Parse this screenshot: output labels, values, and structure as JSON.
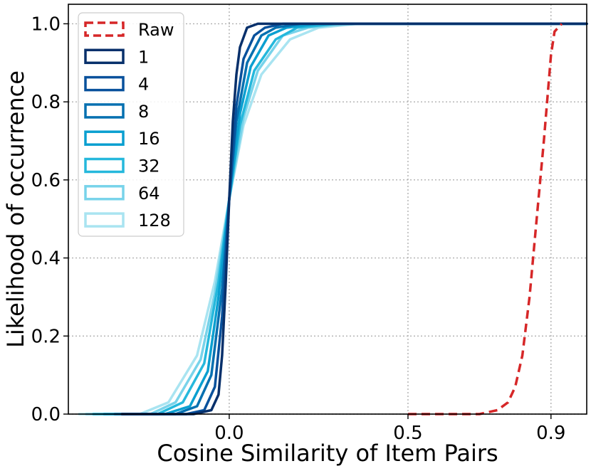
{
  "chart_data": {
    "type": "line",
    "xlabel": "Cosine Similarity of Item Pairs",
    "ylabel": "Likelihood of occurrence",
    "xlim": [
      -0.45,
      1.0
    ],
    "ylim": [
      0.0,
      1.05
    ],
    "x_ticks": [
      0.0,
      0.5,
      0.9
    ],
    "x_tick_labels": [
      "0.0",
      "0.5",
      "0.9"
    ],
    "y_ticks": [
      0.0,
      0.2,
      0.4,
      0.6,
      0.8,
      1.0
    ],
    "y_tick_labels": [
      "0.0",
      "0.2",
      "0.4",
      "0.6",
      "0.8",
      "1.0"
    ],
    "grid": true,
    "legend_position": "top-left",
    "series": [
      {
        "name": "Raw",
        "color": "#d62728",
        "dashed": true,
        "x": [
          0.5,
          0.7,
          0.75,
          0.78,
          0.8,
          0.82,
          0.84,
          0.86,
          0.88,
          0.9,
          0.91,
          0.93
        ],
        "y": [
          0.0,
          0.0,
          0.01,
          0.03,
          0.07,
          0.15,
          0.3,
          0.5,
          0.7,
          0.92,
          0.98,
          1.0
        ]
      },
      {
        "name": "1",
        "color": "#08306b",
        "dashed": false,
        "x": [
          -0.3,
          -0.1,
          -0.05,
          -0.03,
          -0.02,
          -0.01,
          0.0,
          0.01,
          0.02,
          0.03,
          0.05,
          0.08,
          0.12,
          1.0
        ],
        "y": [
          0.0,
          0.0,
          0.01,
          0.05,
          0.15,
          0.33,
          0.55,
          0.75,
          0.87,
          0.94,
          0.99,
          1.0,
          1.0,
          1.0
        ]
      },
      {
        "name": "4",
        "color": "#08519c",
        "dashed": false,
        "x": [
          -0.3,
          -0.12,
          -0.07,
          -0.04,
          -0.02,
          0.0,
          0.02,
          0.04,
          0.07,
          0.1,
          0.15,
          1.0
        ],
        "y": [
          0.0,
          0.0,
          0.01,
          0.07,
          0.25,
          0.55,
          0.79,
          0.91,
          0.97,
          0.99,
          1.0,
          1.0
        ]
      },
      {
        "name": "8",
        "color": "#0570b0",
        "dashed": false,
        "x": [
          -0.32,
          -0.15,
          -0.09,
          -0.05,
          -0.02,
          0.0,
          0.02,
          0.05,
          0.09,
          0.13,
          0.2,
          1.0
        ],
        "y": [
          0.0,
          0.0,
          0.02,
          0.1,
          0.32,
          0.55,
          0.75,
          0.9,
          0.97,
          0.99,
          1.0,
          1.0
        ]
      },
      {
        "name": "16",
        "color": "#0a9fd0",
        "dashed": false,
        "x": [
          -0.35,
          -0.18,
          -0.11,
          -0.06,
          -0.03,
          0.0,
          0.03,
          0.06,
          0.11,
          0.16,
          0.25,
          1.0
        ],
        "y": [
          0.0,
          0.0,
          0.02,
          0.11,
          0.3,
          0.55,
          0.77,
          0.89,
          0.97,
          0.99,
          1.0,
          1.0
        ]
      },
      {
        "name": "32",
        "color": "#25b8dc",
        "dashed": false,
        "x": [
          -0.38,
          -0.2,
          -0.13,
          -0.07,
          -0.03,
          0.0,
          0.03,
          0.07,
          0.13,
          0.19,
          0.3,
          1.0
        ],
        "y": [
          0.0,
          0.0,
          0.03,
          0.13,
          0.34,
          0.55,
          0.74,
          0.88,
          0.96,
          0.99,
          1.0,
          1.0
        ]
      },
      {
        "name": "64",
        "color": "#78d3ea",
        "dashed": false,
        "x": [
          -0.4,
          -0.22,
          -0.15,
          -0.08,
          -0.04,
          0.0,
          0.04,
          0.08,
          0.15,
          0.22,
          0.33,
          1.0
        ],
        "y": [
          0.0,
          0.0,
          0.03,
          0.14,
          0.31,
          0.55,
          0.76,
          0.88,
          0.97,
          0.99,
          1.0,
          1.0
        ]
      },
      {
        "name": "128",
        "color": "#a9e4f1",
        "dashed": false,
        "x": [
          -0.42,
          -0.25,
          -0.17,
          -0.09,
          -0.04,
          0.0,
          0.04,
          0.09,
          0.17,
          0.25,
          0.36,
          1.0
        ],
        "y": [
          0.0,
          0.0,
          0.03,
          0.15,
          0.34,
          0.55,
          0.74,
          0.87,
          0.96,
          0.99,
          1.0,
          1.0
        ]
      }
    ]
  }
}
